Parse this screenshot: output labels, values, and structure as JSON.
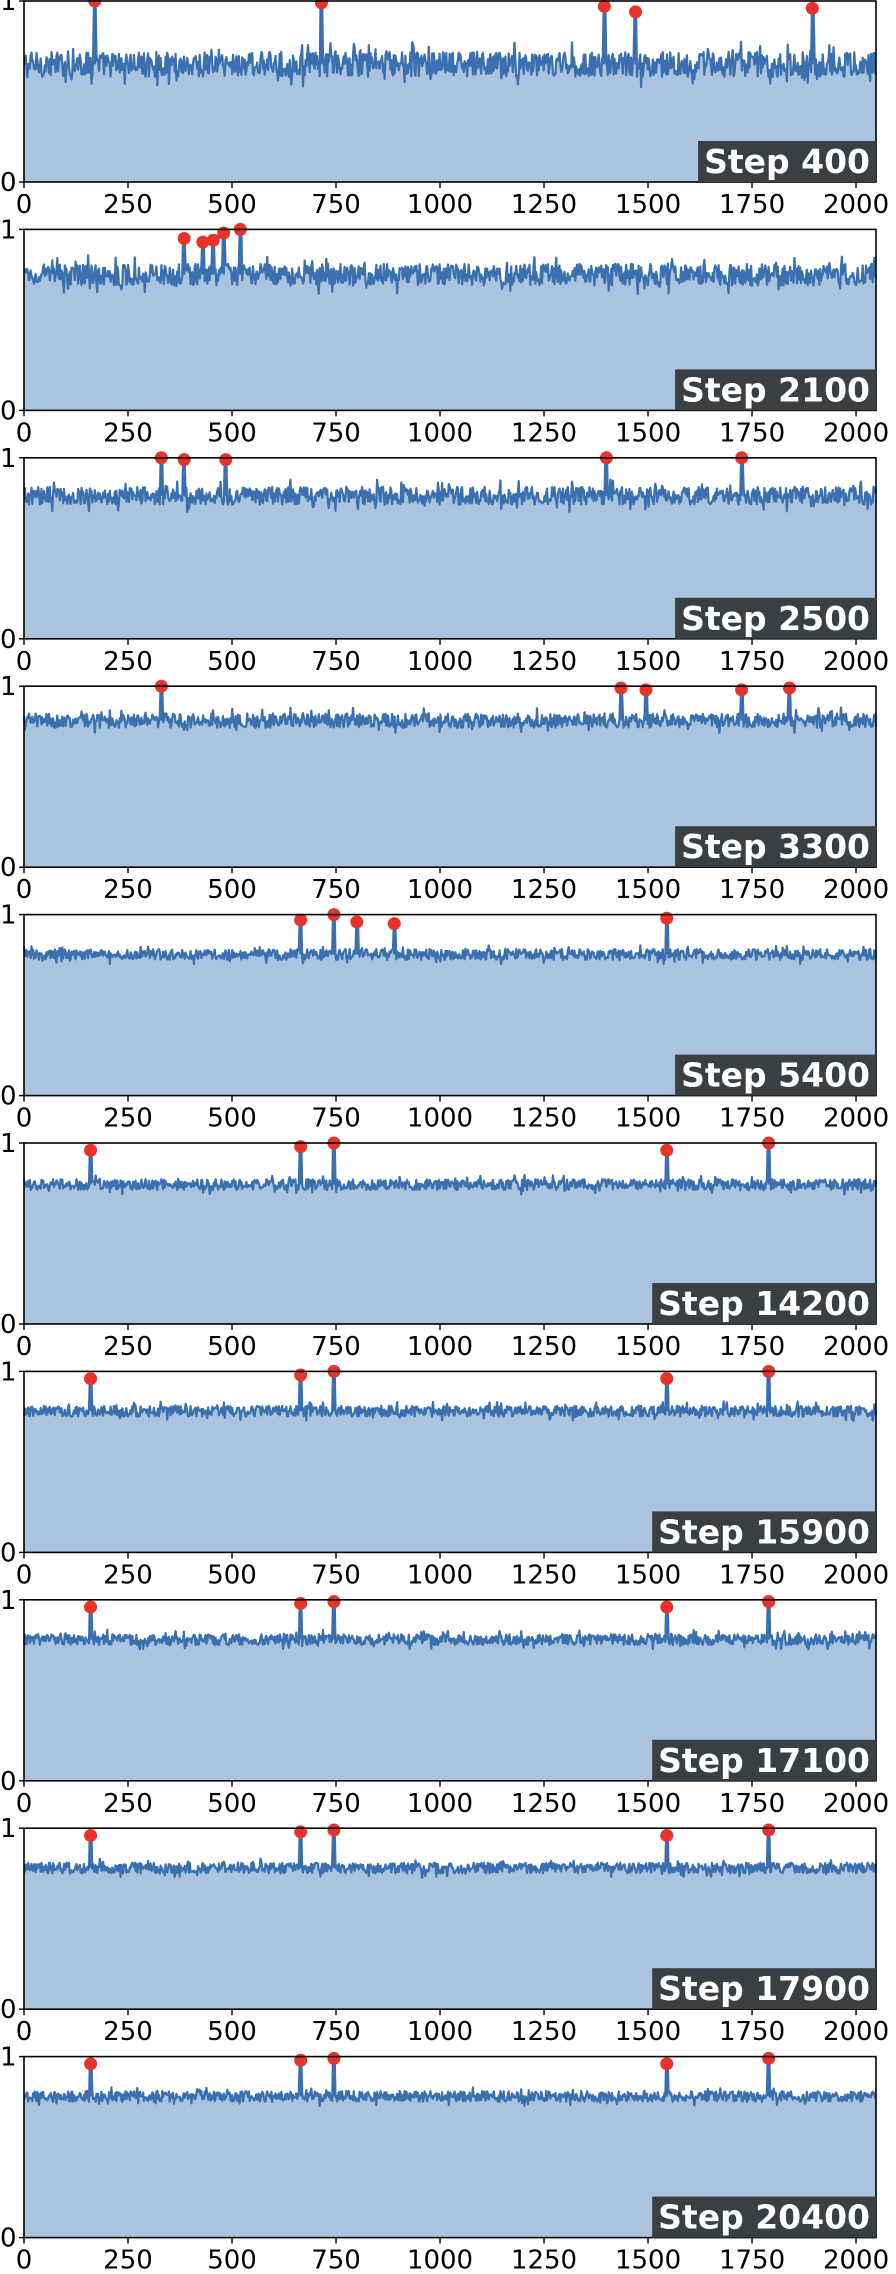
{
  "colors": {
    "fill": "#aac4e0",
    "line": "#3a6fb0",
    "peak": "#e8332a",
    "label_bg": "#3a3f44",
    "axis": "#000000"
  },
  "chart_data": [
    {
      "type": "line",
      "step_label": "Step 400",
      "xlim": [
        0,
        2048
      ],
      "ylim": [
        0,
        1
      ],
      "x_ticks": [
        0,
        250,
        500,
        750,
        1000,
        1250,
        1500,
        1750,
        2000
      ],
      "y_ticks": [
        0,
        1
      ],
      "baseline": 0.65,
      "noise": 0.07,
      "peaks": [
        {
          "x": 170,
          "y": 1.0
        },
        {
          "x": 715,
          "y": 0.99
        },
        {
          "x": 1395,
          "y": 0.97
        },
        {
          "x": 1470,
          "y": 0.94
        },
        {
          "x": 1895,
          "y": 0.96
        }
      ]
    },
    {
      "type": "line",
      "step_label": "Step 2100",
      "xlim": [
        0,
        2048
      ],
      "ylim": [
        0,
        1
      ],
      "x_ticks": [
        0,
        250,
        500,
        750,
        1000,
        1250,
        1500,
        1750,
        2000
      ],
      "y_ticks": [
        0,
        1
      ],
      "baseline": 0.75,
      "noise": 0.06,
      "peaks": [
        {
          "x": 385,
          "y": 0.95
        },
        {
          "x": 430,
          "y": 0.93
        },
        {
          "x": 455,
          "y": 0.94
        },
        {
          "x": 480,
          "y": 0.98
        },
        {
          "x": 520,
          "y": 1.0
        }
      ]
    },
    {
      "type": "line",
      "step_label": "Step 2500",
      "xlim": [
        0,
        2048
      ],
      "ylim": [
        0,
        1
      ],
      "x_ticks": [
        0,
        250,
        500,
        750,
        1000,
        1250,
        1500,
        1750,
        2000
      ],
      "y_ticks": [
        0,
        1
      ],
      "baseline": 0.79,
      "noise": 0.05,
      "peaks": [
        {
          "x": 330,
          "y": 1.0
        },
        {
          "x": 385,
          "y": 0.99
        },
        {
          "x": 485,
          "y": 0.99
        },
        {
          "x": 1400,
          "y": 1.0
        },
        {
          "x": 1725,
          "y": 1.0
        }
      ]
    },
    {
      "type": "line",
      "step_label": "Step 3300",
      "xlim": [
        0,
        2048
      ],
      "ylim": [
        0,
        1
      ],
      "x_ticks": [
        0,
        250,
        500,
        750,
        1000,
        1250,
        1500,
        1750,
        2000
      ],
      "y_ticks": [
        0,
        1
      ],
      "baseline": 0.81,
      "noise": 0.04,
      "peaks": [
        {
          "x": 330,
          "y": 1.0
        },
        {
          "x": 1435,
          "y": 0.99
        },
        {
          "x": 1495,
          "y": 0.98
        },
        {
          "x": 1725,
          "y": 0.98
        },
        {
          "x": 1840,
          "y": 0.99
        }
      ]
    },
    {
      "type": "line",
      "step_label": "Step 5400",
      "xlim": [
        0,
        2048
      ],
      "ylim": [
        0,
        1
      ],
      "x_ticks": [
        0,
        250,
        500,
        750,
        1000,
        1250,
        1500,
        1750,
        2000
      ],
      "y_ticks": [
        0,
        1
      ],
      "baseline": 0.78,
      "noise": 0.03,
      "peaks": [
        {
          "x": 665,
          "y": 0.97
        },
        {
          "x": 745,
          "y": 1.0
        },
        {
          "x": 800,
          "y": 0.96
        },
        {
          "x": 890,
          "y": 0.95
        },
        {
          "x": 1545,
          "y": 0.98
        }
      ]
    },
    {
      "type": "line",
      "step_label": "Step 14200",
      "xlim": [
        0,
        2048
      ],
      "ylim": [
        0,
        1
      ],
      "x_ticks": [
        0,
        250,
        500,
        750,
        1000,
        1250,
        1500,
        1750,
        2000
      ],
      "y_ticks": [
        0,
        1
      ],
      "baseline": 0.77,
      "noise": 0.03,
      "peaks": [
        {
          "x": 160,
          "y": 0.96
        },
        {
          "x": 665,
          "y": 0.98
        },
        {
          "x": 745,
          "y": 1.0
        },
        {
          "x": 1545,
          "y": 0.96
        },
        {
          "x": 1790,
          "y": 1.0
        }
      ]
    },
    {
      "type": "line",
      "step_label": "Step 15900",
      "xlim": [
        0,
        2048
      ],
      "ylim": [
        0,
        1
      ],
      "x_ticks": [
        0,
        250,
        500,
        750,
        1000,
        1250,
        1500,
        1750,
        2000
      ],
      "y_ticks": [
        0,
        1
      ],
      "baseline": 0.78,
      "noise": 0.03,
      "peaks": [
        {
          "x": 160,
          "y": 0.96
        },
        {
          "x": 665,
          "y": 0.98
        },
        {
          "x": 745,
          "y": 1.0
        },
        {
          "x": 1545,
          "y": 0.96
        },
        {
          "x": 1790,
          "y": 1.0
        }
      ]
    },
    {
      "type": "line",
      "step_label": "Step 17100",
      "xlim": [
        0,
        2048
      ],
      "ylim": [
        0,
        1
      ],
      "x_ticks": [
        0,
        250,
        500,
        750,
        1000,
        1250,
        1500,
        1750,
        2000
      ],
      "y_ticks": [
        0,
        1
      ],
      "baseline": 0.78,
      "noise": 0.03,
      "peaks": [
        {
          "x": 160,
          "y": 0.96
        },
        {
          "x": 665,
          "y": 0.98
        },
        {
          "x": 745,
          "y": 0.99
        },
        {
          "x": 1545,
          "y": 0.96
        },
        {
          "x": 1790,
          "y": 0.99
        }
      ]
    },
    {
      "type": "line",
      "step_label": "Step 17900",
      "xlim": [
        0,
        2048
      ],
      "ylim": [
        0,
        1
      ],
      "x_ticks": [
        0,
        250,
        500,
        750,
        1000,
        1250,
        1500,
        1750,
        2000
      ],
      "y_ticks": [
        0,
        1
      ],
      "baseline": 0.78,
      "noise": 0.03,
      "peaks": [
        {
          "x": 160,
          "y": 0.96
        },
        {
          "x": 665,
          "y": 0.98
        },
        {
          "x": 745,
          "y": 0.99
        },
        {
          "x": 1545,
          "y": 0.96
        },
        {
          "x": 1790,
          "y": 0.99
        }
      ]
    },
    {
      "type": "line",
      "step_label": "Step 20400",
      "xlim": [
        0,
        2048
      ],
      "ylim": [
        0,
        1
      ],
      "x_ticks": [
        0,
        250,
        500,
        750,
        1000,
        1250,
        1500,
        1750,
        2000
      ],
      "y_ticks": [
        0,
        1
      ],
      "baseline": 0.78,
      "noise": 0.03,
      "peaks": [
        {
          "x": 160,
          "y": 0.96
        },
        {
          "x": 665,
          "y": 0.98
        },
        {
          "x": 745,
          "y": 0.99
        },
        {
          "x": 1545,
          "y": 0.96
        },
        {
          "x": 1790,
          "y": 0.99
        }
      ]
    }
  ]
}
